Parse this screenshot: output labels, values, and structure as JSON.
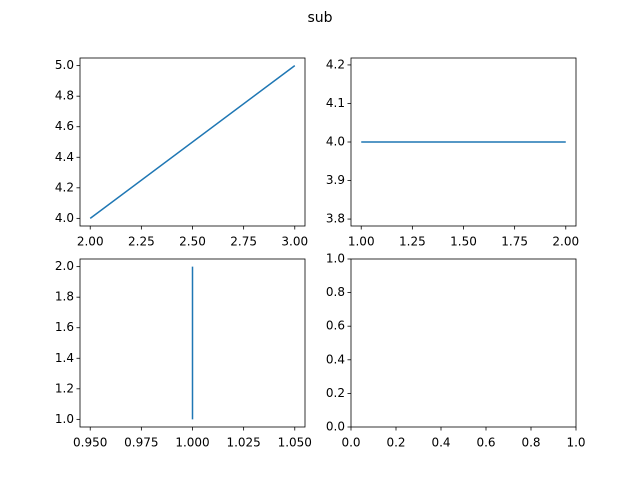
{
  "title": "sub",
  "chart_data": [
    {
      "type": "line",
      "x": [
        2,
        3
      ],
      "values": [
        4,
        5
      ],
      "color": "#1f77b4",
      "xlim": [
        1.95,
        3.05
      ],
      "ylim": [
        3.95,
        5.05
      ],
      "xticks": [
        {
          "value": 2,
          "label": "2.00"
        },
        2.25,
        {
          "value": 2.5,
          "label": "2.50"
        },
        2.75,
        {
          "value": 3,
          "label": "3.00"
        }
      ],
      "yticks": [
        {
          "value": 4,
          "label": "4.0"
        },
        4.2,
        4.4,
        4.6,
        4.8,
        {
          "value": 5,
          "label": "5.0"
        }
      ]
    },
    {
      "type": "line",
      "x": [
        1,
        2
      ],
      "values": [
        4,
        4
      ],
      "color": "#1f77b4",
      "xlim": [
        0.95,
        2.05
      ],
      "ylim": [
        3.782,
        4.218
      ],
      "xticks": [
        {
          "value": 1,
          "label": "1.00"
        },
        1.25,
        {
          "value": 1.5,
          "label": "1.50"
        },
        1.75,
        {
          "value": 2,
          "label": "2.00"
        }
      ],
      "yticks": [
        3.8,
        3.9,
        {
          "value": 4,
          "label": "4.0"
        },
        4.1,
        4.2
      ]
    },
    {
      "type": "line",
      "x": [
        1,
        1
      ],
      "values": [
        1,
        2
      ],
      "color": "#1f77b4",
      "xlim": [
        0.945,
        1.055
      ],
      "ylim": [
        0.95,
        2.05
      ],
      "xticks": [
        {
          "value": 0.95,
          "label": "0.950"
        },
        0.975,
        {
          "value": 1,
          "label": "1.000"
        },
        1.025,
        {
          "value": 1.05,
          "label": "1.050"
        }
      ],
      "yticks": [
        {
          "value": 1,
          "label": "1.0"
        },
        1.2,
        1.4,
        1.6,
        1.8,
        {
          "value": 2,
          "label": "2.0"
        }
      ]
    },
    {
      "type": "line",
      "x": [],
      "values": [],
      "color": "#1f77b4",
      "xlim": [
        0,
        1
      ],
      "ylim": [
        0,
        1
      ],
      "xticks": [
        {
          "value": 0,
          "label": "0.0"
        },
        0.2,
        0.4,
        0.6,
        0.8,
        {
          "value": 1,
          "label": "1.0"
        }
      ],
      "yticks": [
        {
          "value": 0,
          "label": "0.0"
        },
        0.2,
        0.4,
        0.6,
        0.8,
        {
          "value": 1,
          "label": "1.0"
        }
      ]
    }
  ]
}
